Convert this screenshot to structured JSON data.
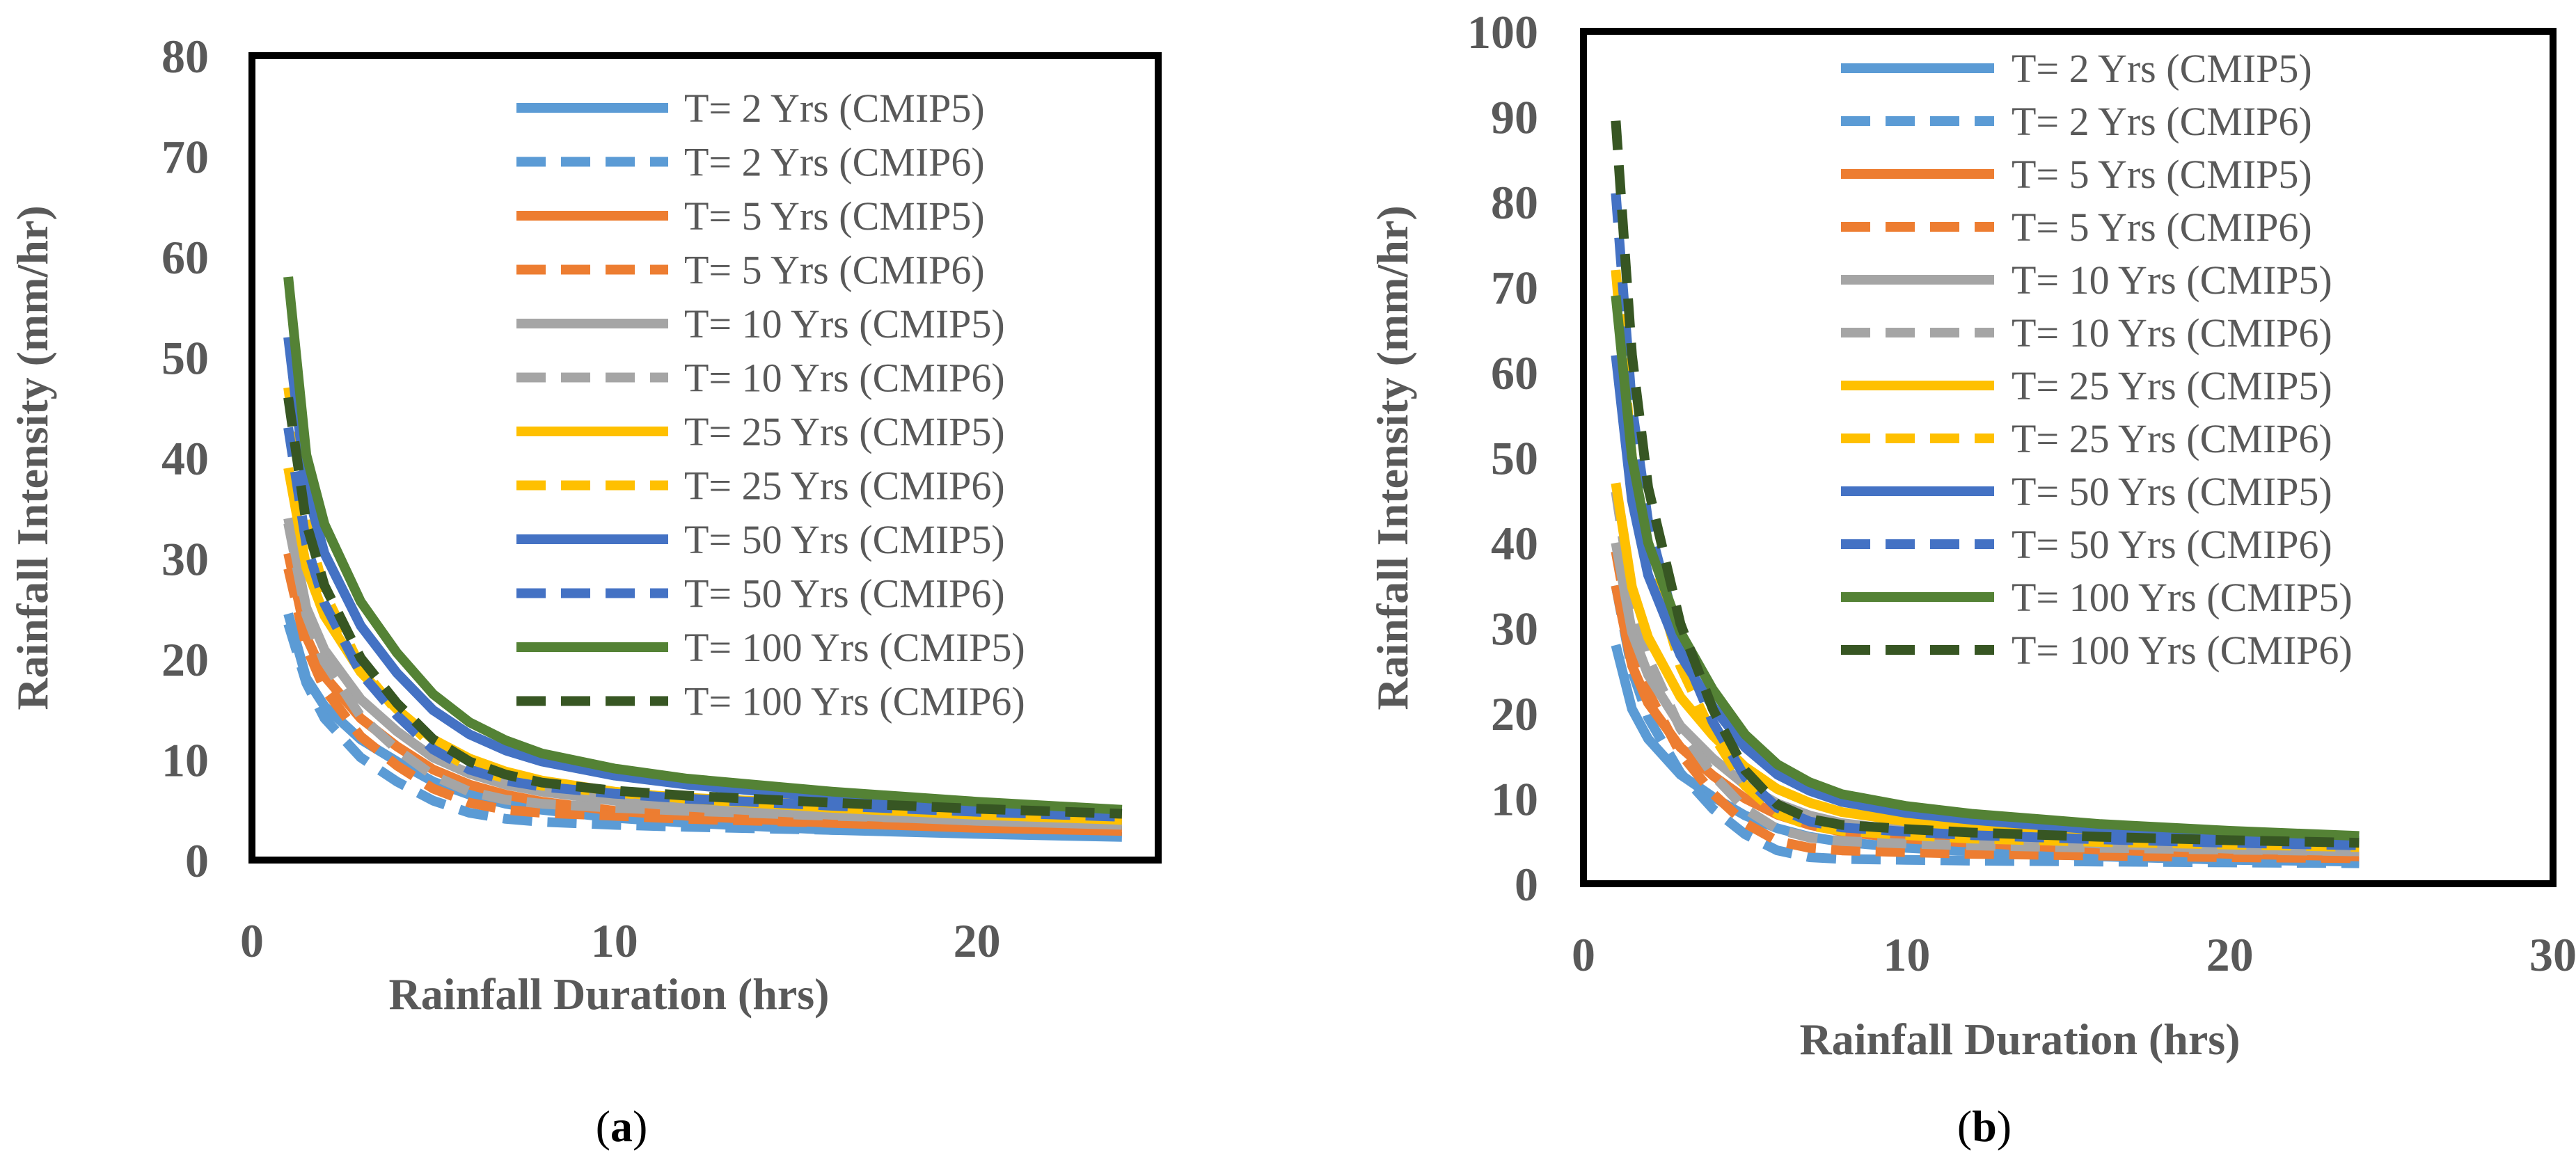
{
  "panels": [
    {
      "label_open": "(",
      "label_letter": "a",
      "label_close": ")"
    },
    {
      "label_open": "(",
      "label_letter": "b",
      "label_close": ")"
    }
  ],
  "chart_data": [
    {
      "type": "line",
      "title": "",
      "xlabel": "Rainfall Duration (hrs)",
      "ylabel": "Rainfall Intensity (mm/hr)",
      "xlim": [
        0,
        25
      ],
      "ylim": [
        0,
        80
      ],
      "xticks": [
        0,
        10,
        20
      ],
      "yticks": [
        0,
        10,
        20,
        30,
        40,
        50,
        60,
        70,
        80
      ],
      "grid": false,
      "legend_position": "top-right",
      "x": [
        1,
        1.5,
        2,
        3,
        4,
        5,
        6,
        7,
        8,
        10,
        12,
        16,
        20,
        24
      ],
      "series": [
        {
          "name": "T= 2 Yrs (CMIP5)",
          "color": "#5B9BD5",
          "dash": "solid",
          "values": [
            24.5,
            18.1,
            15.3,
            12.0,
            9.8,
            7.8,
            6.5,
            5.6,
            5.0,
            4.2,
            3.7,
            3.0,
            2.6,
            2.3
          ]
        },
        {
          "name": "T= 2 Yrs (CMIP6)",
          "color": "#5B9BD5",
          "dash": "dashed",
          "values": [
            23.5,
            17.6,
            14.1,
            10.2,
            7.8,
            5.9,
            4.7,
            4.1,
            3.8,
            3.5,
            3.3,
            3.0,
            2.8,
            2.6
          ]
        },
        {
          "name": "T= 5 Yrs (CMIP5)",
          "color": "#ED7D31",
          "dash": "solid",
          "values": [
            30.5,
            22.2,
            18.3,
            14.1,
            11.3,
            9.0,
            7.5,
            6.5,
            5.8,
            4.9,
            4.4,
            3.7,
            3.2,
            2.9
          ]
        },
        {
          "name": "T= 5 Yrs (CMIP6)",
          "color": "#ED7D31",
          "dash": "dashed",
          "values": [
            29.0,
            21.2,
            17.0,
            12.3,
            9.4,
            7.1,
            5.7,
            5.0,
            4.7,
            4.4,
            4.1,
            3.7,
            3.4,
            3.1
          ]
        },
        {
          "name": "T= 10 Yrs (CMIP5)",
          "color": "#A5A5A5",
          "dash": "solid",
          "values": [
            34.0,
            25.1,
            20.9,
            16.0,
            12.8,
            10.2,
            8.6,
            7.5,
            6.8,
            5.9,
            5.3,
            4.5,
            3.9,
            3.5
          ]
        },
        {
          "name": "T= 10 Yrs (CMIP6)",
          "color": "#A5A5A5",
          "dash": "dashed",
          "values": [
            33.5,
            24.4,
            19.7,
            14.3,
            11.0,
            8.4,
            6.8,
            6.0,
            5.6,
            5.2,
            4.9,
            4.4,
            4.0,
            3.7
          ]
        },
        {
          "name": "T= 25 Yrs (CMIP5)",
          "color": "#FFC000",
          "dash": "solid",
          "values": [
            39.0,
            29.1,
            24.3,
            18.7,
            15.0,
            12.0,
            10.1,
            8.8,
            7.9,
            6.8,
            6.1,
            5.2,
            4.5,
            4.0
          ]
        },
        {
          "name": "T= 25 Yrs (CMIP6)",
          "color": "#FFC000",
          "dash": "dashed",
          "values": [
            47.0,
            33.7,
            26.6,
            19.2,
            14.8,
            11.3,
            9.2,
            8.1,
            7.4,
            6.7,
            6.2,
            5.5,
            4.9,
            4.4
          ]
        },
        {
          "name": "T= 50 Yrs (CMIP5)",
          "color": "#4472C4",
          "dash": "solid",
          "values": [
            52.0,
            37.0,
            30.5,
            23.3,
            18.6,
            14.9,
            12.5,
            10.9,
            9.8,
            8.4,
            7.5,
            6.2,
            5.3,
            4.6
          ]
        },
        {
          "name": "T= 50 Yrs (CMIP6)",
          "color": "#4472C4",
          "dash": "dashed",
          "values": [
            43.0,
            31.4,
            25.5,
            18.6,
            14.4,
            11.0,
            9.0,
            7.9,
            7.3,
            6.6,
            6.1,
            5.4,
            4.8,
            4.3
          ]
        },
        {
          "name": "T= 100 Yrs (CMIP5)",
          "color": "#548235",
          "dash": "solid",
          "values": [
            58.0,
            40.3,
            33.4,
            25.7,
            20.6,
            16.5,
            13.7,
            11.9,
            10.6,
            9.1,
            8.1,
            6.8,
            5.8,
            5.0
          ]
        },
        {
          "name": "T= 100 Yrs (CMIP6)",
          "color": "#375623",
          "dash": "dashed",
          "values": [
            46.0,
            33.5,
            27.3,
            20.1,
            15.6,
            12.0,
            9.8,
            8.5,
            7.7,
            6.9,
            6.4,
            5.7,
            5.1,
            4.6
          ]
        }
      ]
    },
    {
      "type": "line",
      "title": "",
      "xlabel": "Rainfall Duration (hrs)",
      "ylabel": "Rainfall Intensity (mm/hr)",
      "xlim": [
        0,
        30
      ],
      "ylim": [
        0,
        100
      ],
      "xticks": [
        0,
        10,
        20,
        30
      ],
      "yticks": [
        0,
        10,
        20,
        30,
        40,
        50,
        60,
        70,
        80,
        90,
        100
      ],
      "grid": false,
      "legend_position": "top-right",
      "x": [
        1,
        1.5,
        2,
        3,
        4,
        5,
        6,
        7,
        8,
        10,
        12,
        16,
        20,
        24
      ],
      "series": [
        {
          "name": "T= 2 Yrs (CMIP5)",
          "color": "#5B9BD5",
          "dash": "solid",
          "values": [
            28.0,
            20.5,
            17.0,
            12.8,
            10.2,
            8.0,
            6.5,
            5.5,
            4.9,
            4.2,
            3.8,
            3.2,
            2.8,
            2.6
          ]
        },
        {
          "name": "T= 2 Yrs (CMIP6)",
          "color": "#5B9BD5",
          "dash": "dashed",
          "values": [
            35.0,
            25.0,
            19.5,
            13.0,
            8.8,
            5.8,
            3.9,
            3.1,
            2.9,
            2.8,
            2.7,
            2.6,
            2.5,
            2.4
          ]
        },
        {
          "name": "T= 5 Yrs (CMIP5)",
          "color": "#ED7D31",
          "dash": "solid",
          "values": [
            35.0,
            25.6,
            21.2,
            16.0,
            12.7,
            10.0,
            8.1,
            6.9,
            6.1,
            5.3,
            4.8,
            4.0,
            3.5,
            3.2
          ]
        },
        {
          "name": "T= 5 Yrs (CMIP6)",
          "color": "#ED7D31",
          "dash": "dashed",
          "values": [
            39.0,
            28.5,
            22.5,
            15.3,
            10.6,
            7.1,
            5.0,
            4.2,
            3.9,
            3.7,
            3.5,
            3.3,
            3.1,
            3.0
          ]
        },
        {
          "name": "T= 10 Yrs (CMIP5)",
          "color": "#A5A5A5",
          "dash": "solid",
          "values": [
            40.0,
            29.5,
            24.5,
            18.5,
            14.7,
            11.6,
            9.4,
            8.0,
            7.1,
            6.2,
            5.6,
            4.7,
            4.1,
            3.8
          ]
        },
        {
          "name": "T= 10 Yrs (CMIP6)",
          "color": "#A5A5A5",
          "dash": "dashed",
          "values": [
            46.0,
            33.5,
            26.5,
            18.2,
            12.8,
            8.8,
            6.4,
            5.4,
            5.0,
            4.7,
            4.5,
            4.2,
            4.0,
            3.8
          ]
        },
        {
          "name": "T= 25 Yrs (CMIP5)",
          "color": "#FFC000",
          "dash": "solid",
          "values": [
            47.0,
            34.8,
            28.9,
            21.9,
            17.4,
            13.7,
            11.1,
            9.5,
            8.4,
            7.3,
            6.6,
            5.6,
            4.9,
            4.5
          ]
        },
        {
          "name": "T= 25 Yrs (CMIP6)",
          "color": "#FFC000",
          "dash": "dashed",
          "values": [
            72.0,
            50.0,
            38.5,
            25.5,
            17.5,
            11.5,
            8.2,
            6.8,
            6.2,
            5.7,
            5.3,
            4.9,
            4.6,
            4.3
          ]
        },
        {
          "name": "T= 50 Yrs (CMIP5)",
          "color": "#4472C4",
          "dash": "solid",
          "values": [
            62.0,
            45.0,
            36.2,
            26.8,
            20.8,
            16.0,
            12.8,
            10.9,
            9.6,
            8.3,
            7.5,
            6.3,
            5.5,
            5.0
          ]
        },
        {
          "name": "T= 50 Yrs (CMIP6)",
          "color": "#4472C4",
          "dash": "dashed",
          "values": [
            81.0,
            56.0,
            42.5,
            28.0,
            19.0,
            12.5,
            8.9,
            7.3,
            6.6,
            6.1,
            5.7,
            5.2,
            4.8,
            4.5
          ]
        },
        {
          "name": "T= 100 Yrs (CMIP5)",
          "color": "#548235",
          "dash": "solid",
          "values": [
            69.0,
            50.0,
            40.0,
            29.5,
            22.8,
            17.5,
            14.0,
            11.9,
            10.5,
            9.1,
            8.2,
            7.0,
            6.2,
            5.6
          ]
        },
        {
          "name": "T= 100 Yrs (CMIP6)",
          "color": "#375623",
          "dash": "dashed",
          "values": [
            89.5,
            62.0,
            46.5,
            30.5,
            20.5,
            13.3,
            9.3,
            7.6,
            6.9,
            6.4,
            6.0,
            5.5,
            5.1,
            4.8
          ]
        }
      ]
    }
  ]
}
